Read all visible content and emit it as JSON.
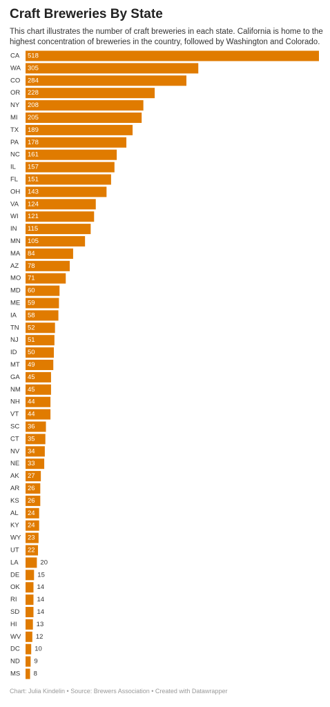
{
  "chart_data": {
    "type": "bar",
    "orientation": "horizontal",
    "title": "Craft Breweries By State",
    "subtitle": "This chart illustrates the number of craft breweries in each state. California is home to the highest concentration of breweries in the country, followed by Washington and Colorado.",
    "footer": "Chart: Julia Kindelin • Source: Brewers Association • Created with Datawrapper",
    "color": "#e07b00",
    "categories": [
      "CA",
      "WA",
      "CO",
      "OR",
      "NY",
      "MI",
      "TX",
      "PA",
      "NC",
      "IL",
      "FL",
      "OH",
      "VA",
      "WI",
      "IN",
      "MN",
      "MA",
      "AZ",
      "MO",
      "MD",
      "ME",
      "IA",
      "TN",
      "NJ",
      "ID",
      "MT",
      "GA",
      "NM",
      "NH",
      "VT",
      "SC",
      "CT",
      "NV",
      "NE",
      "AK",
      "AR",
      "KS",
      "AL",
      "KY",
      "WY",
      "UT",
      "LA",
      "DE",
      "OK",
      "RI",
      "SD",
      "HI",
      "WV",
      "DC",
      "ND",
      "MS"
    ],
    "values": [
      518,
      305,
      284,
      228,
      208,
      205,
      189,
      178,
      161,
      157,
      151,
      143,
      124,
      121,
      115,
      105,
      84,
      78,
      71,
      60,
      59,
      58,
      52,
      51,
      50,
      49,
      45,
      45,
      44,
      44,
      36,
      35,
      34,
      33,
      27,
      26,
      26,
      24,
      24,
      23,
      22,
      20,
      15,
      14,
      14,
      14,
      13,
      12,
      10,
      9,
      8
    ]
  }
}
